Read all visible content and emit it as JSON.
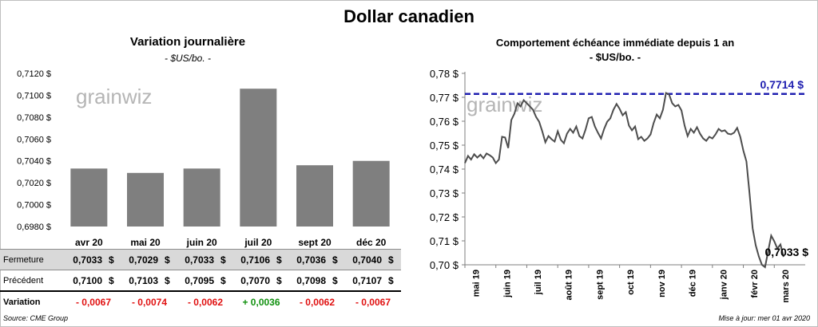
{
  "title": "Dollar canadien",
  "left_panel": {
    "title": "Variation  journalière",
    "subtitle": "- $US/bo. -",
    "rows": {
      "close_label": "Fermeture",
      "prev_label": "Précédent",
      "var_label": "Variation",
      "unit": "$"
    },
    "close": [
      "0,7033",
      "0,7029",
      "0,7033",
      "0,7106",
      "0,7036",
      "0,7040"
    ],
    "previous": [
      "0,7100",
      "0,7103",
      "0,7095",
      "0,7070",
      "0,7098",
      "0,7107"
    ],
    "variation": [
      "- 0,0067",
      "- 0,0074",
      "- 0,0062",
      "+ 0,0036",
      "- 0,0062",
      "- 0,0067"
    ],
    "variation_colors": [
      "#e01010",
      "#e01010",
      "#e01010",
      "#10900e",
      "#e01010",
      "#e01010"
    ]
  },
  "right_panel": {
    "title": "Comportement échéance immédiate depuis 1 an",
    "subtitle": "- $US/bo. -"
  },
  "watermark": "grainwiz",
  "footer": {
    "source": "Source: CME Group",
    "update": "Mise à jour: mer 01 avr 2020"
  },
  "colors": {
    "bar": "#7f7f7f",
    "line": "#4d4d4d",
    "ref_line": "#1f1fb0",
    "neg": "#e01010",
    "pos": "#10900e"
  },
  "chart_data": [
    {
      "type": "bar",
      "title": "Variation  journalière",
      "categories": [
        "avr 20",
        "mai 20",
        "juin 20",
        "juil 20",
        "sept 20",
        "déc 20"
      ],
      "values": [
        0.7033,
        0.7029,
        0.7033,
        0.7106,
        0.7036,
        0.704
      ],
      "ylim": [
        0.698,
        0.712
      ],
      "yticks": [
        0.698,
        0.7,
        0.702,
        0.704,
        0.706,
        0.708,
        0.71,
        0.712
      ],
      "ytick_labels": [
        "0,6980 $",
        "0,7000 $",
        "0,7020 $",
        "0,7040 $",
        "0,7060 $",
        "0,7080 $",
        "0,7100 $",
        "0,7120 $"
      ],
      "grid": false
    },
    {
      "type": "line",
      "title": "Comportement échéance immédiate depuis 1 an",
      "ylim": [
        0.7,
        0.78
      ],
      "yticks": [
        0.7,
        0.71,
        0.72,
        0.73,
        0.74,
        0.75,
        0.76,
        0.77,
        0.78
      ],
      "ytick_labels": [
        "0,70 $",
        "0,71 $",
        "0,72 $",
        "0,73 $",
        "0,74 $",
        "0,75 $",
        "0,76 $",
        "0,77 $",
        "0,78 $"
      ],
      "xtick_labels": [
        "mai 19",
        "juin 19",
        "juil 19",
        "août 19",
        "sept 19",
        "oct 19",
        "nov 19",
        "déc 19",
        "janv 20",
        "févr 20",
        "mars 20"
      ],
      "xlim": [
        0,
        11
      ],
      "x": [
        0,
        0.1,
        0.2,
        0.3,
        0.4,
        0.5,
        0.6,
        0.7,
        0.8,
        0.9,
        1.0,
        1.1,
        1.2,
        1.3,
        1.4,
        1.5,
        1.6,
        1.7,
        1.8,
        1.9,
        2.0,
        2.1,
        2.2,
        2.3,
        2.4,
        2.5,
        2.6,
        2.7,
        2.8,
        2.9,
        3.0,
        3.1,
        3.2,
        3.3,
        3.4,
        3.5,
        3.6,
        3.7,
        3.8,
        3.9,
        4.0,
        4.1,
        4.2,
        4.3,
        4.4,
        4.5,
        4.6,
        4.7,
        4.8,
        4.9,
        5.0,
        5.1,
        5.2,
        5.3,
        5.4,
        5.5,
        5.6,
        5.7,
        5.8,
        5.9,
        6.0,
        6.1,
        6.2,
        6.3,
        6.4,
        6.5,
        6.6,
        6.7,
        6.8,
        6.9,
        7.0,
        7.1,
        7.2,
        7.3,
        7.4,
        7.5,
        7.6,
        7.7,
        7.8,
        7.9,
        8.0,
        8.1,
        8.2,
        8.3,
        8.4,
        8.5,
        8.6,
        8.7,
        8.8,
        8.9,
        9.0,
        9.1,
        9.2,
        9.3,
        9.4,
        9.5,
        9.6,
        9.7,
        9.8,
        9.9,
        10.0,
        10.1,
        10.2,
        10.3
      ],
      "y": [
        0.7425,
        0.7455,
        0.744,
        0.7462,
        0.7448,
        0.746,
        0.7445,
        0.7465,
        0.7458,
        0.7448,
        0.7425,
        0.744,
        0.7535,
        0.7532,
        0.7488,
        0.7605,
        0.7632,
        0.7675,
        0.7662,
        0.7688,
        0.7675,
        0.7662,
        0.7648,
        0.7618,
        0.7598,
        0.7558,
        0.7512,
        0.7538,
        0.7525,
        0.7515,
        0.7558,
        0.7522,
        0.7508,
        0.7548,
        0.7568,
        0.7552,
        0.7578,
        0.7538,
        0.7528,
        0.7565,
        0.7612,
        0.7618,
        0.7578,
        0.7552,
        0.7528,
        0.7568,
        0.7598,
        0.7612,
        0.7648,
        0.7672,
        0.7652,
        0.7625,
        0.7638,
        0.7582,
        0.7562,
        0.7578,
        0.7525,
        0.7535,
        0.7518,
        0.7528,
        0.7545,
        0.7592,
        0.7628,
        0.7612,
        0.7648,
        0.7718,
        0.7712,
        0.7675,
        0.7662,
        0.7668,
        0.7645,
        0.7582,
        0.7538,
        0.7568,
        0.7552,
        0.7575,
        0.7548,
        0.7528,
        0.7518,
        0.7535,
        0.7528,
        0.7545,
        0.7568,
        0.7558,
        0.7562,
        0.7548,
        0.7545,
        0.7552,
        0.7572,
        0.7535,
        0.7478,
        0.7432,
        0.7298,
        0.7152,
        0.7082,
        0.7035,
        0.7,
        0.699,
        0.7055,
        0.7122,
        0.7098,
        0.7068,
        0.7085,
        0.7033
      ],
      "reference_line": {
        "value": 0.7714,
        "label": "0,7714 $"
      },
      "last_label": "0,7033 $",
      "grid": false
    }
  ]
}
